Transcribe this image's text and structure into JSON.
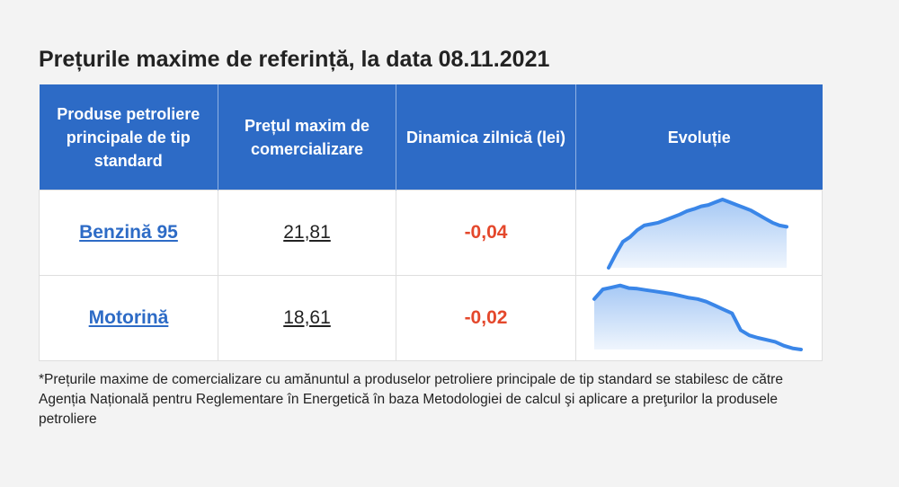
{
  "title": "Prețurile maxime de referință, la data 08.11.2021",
  "table": {
    "headers": [
      "Produse petroliere principale de tip standard",
      "Prețul maxim de comercializare",
      "Dinamica zilnică (lei)",
      "Evoluție"
    ],
    "rows": [
      {
        "product": "Benzină 95",
        "price": "21,81",
        "delta": "-0,04"
      },
      {
        "product": "Motorină",
        "price": "18,61",
        "delta": "-0,02"
      }
    ]
  },
  "colors": {
    "header_bg": "#2d6bc6",
    "link": "#2d6bc6",
    "delta_negative": "#e4482c",
    "sparkline": "#3a86e8"
  },
  "chart_data": [
    {
      "type": "area",
      "name": "",
      "title": "",
      "values": [
        0.0,
        0.2,
        0.38,
        0.45,
        0.55,
        0.62,
        0.64,
        0.66,
        0.7,
        0.74,
        0.78,
        0.83,
        0.86,
        0.9,
        0.92,
        0.96,
        1.0,
        0.96,
        0.92,
        0.88,
        0.84,
        0.78,
        0.72,
        0.66,
        0.62,
        0.6
      ]
    },
    {
      "type": "area",
      "name": "",
      "title": "",
      "values": [
        0.78,
        0.93,
        0.96,
        0.99,
        0.95,
        0.94,
        0.92,
        0.9,
        0.88,
        0.86,
        0.83,
        0.8,
        0.78,
        0.74,
        0.68,
        0.62,
        0.56,
        0.3,
        0.22,
        0.18,
        0.15,
        0.12,
        0.06,
        0.02,
        0.0
      ]
    }
  ]
}
